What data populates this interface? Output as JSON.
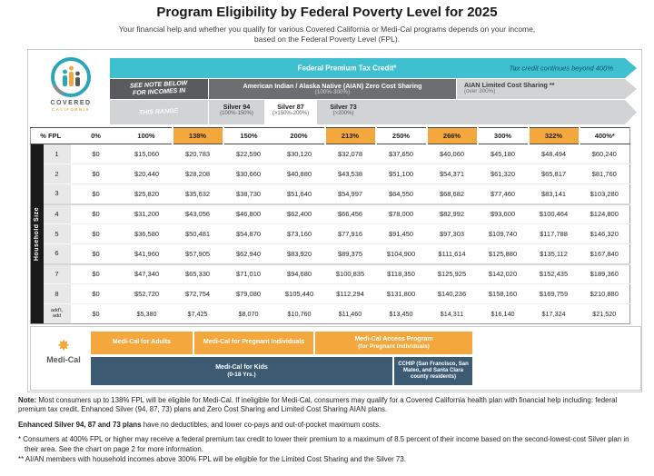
{
  "page": {
    "title": "Program Eligibility by Federal Poverty Level for 2025",
    "subtitle_line1": "Your financial help and whether you qualify for various Covered California or Medi-Cal programs depends on your income,",
    "subtitle_line2": "based on the Federal Poverty Level (FPL)."
  },
  "logo": {
    "brand_top": "COVERED",
    "brand_bottom": "CALIFORNIA"
  },
  "arrows": {
    "tax_credit": {
      "label": "Federal Premium Tax Credit*",
      "right_note": "Tax credit continues beyond 400%",
      "color": "#3fc0d0"
    },
    "see_note": {
      "line1": "SEE NOTE BELOW",
      "line2": "FOR INCOMES IN",
      "line3": "THIS RANGE"
    },
    "aian_zero": {
      "label": "American Indian / Alaska Native (AIAN) Zero Cost Sharing",
      "range": "(100%-300%)",
      "color": "#6d6e71"
    },
    "aian_limited": {
      "label": "AIAN Limited Cost Sharing **",
      "range": "(over 300%)",
      "color": "#d1d3d4"
    },
    "silver_plans": [
      {
        "name": "Silver 94",
        "range": "(100%-150%)"
      },
      {
        "name": "Silver 87",
        "range": "(>150%-200%)"
      },
      {
        "name": "Silver 73",
        "range": "(>200%)"
      }
    ]
  },
  "table": {
    "corner_header": "% FPL",
    "row_axis_label": "Household Size",
    "highlight_color": "#f3a73c",
    "columns": [
      {
        "label": "0%",
        "highlight": false
      },
      {
        "label": "100%",
        "highlight": false
      },
      {
        "label": "138%",
        "highlight": true
      },
      {
        "label": "150%",
        "highlight": false
      },
      {
        "label": "200%",
        "highlight": false
      },
      {
        "label": "213%",
        "highlight": true
      },
      {
        "label": "250%",
        "highlight": false
      },
      {
        "label": "266%",
        "highlight": true
      },
      {
        "label": "300%",
        "highlight": false
      },
      {
        "label": "322%",
        "highlight": true
      },
      {
        "label": "400%*",
        "highlight": false
      }
    ],
    "rows": [
      {
        "size": "1",
        "values": [
          "$0",
          "$15,060",
          "$20,783",
          "$22,590",
          "$30,120",
          "$32,078",
          "$37,650",
          "$40,060",
          "$45,180",
          "$48,494",
          "$60,240"
        ]
      },
      {
        "size": "2",
        "values": [
          "$0",
          "$20,440",
          "$28,208",
          "$30,660",
          "$40,880",
          "$43,538",
          "$51,100",
          "$54,371",
          "$61,320",
          "$65,817",
          "$81,760"
        ]
      },
      {
        "size": "3",
        "values": [
          "$0",
          "$25,820",
          "$35,632",
          "$38,730",
          "$51,640",
          "$54,997",
          "$64,550",
          "$68,682",
          "$77,460",
          "$83,141",
          "$103,280"
        ]
      },
      {
        "size": "4",
        "values": [
          "$0",
          "$31,200",
          "$43,056",
          "$46,800",
          "$62,400",
          "$66,456",
          "$78,000",
          "$82,992",
          "$93,600",
          "$100,464",
          "$124,800"
        ]
      },
      {
        "size": "5",
        "values": [
          "$0",
          "$36,580",
          "$50,481",
          "$54,870",
          "$73,160",
          "$77,916",
          "$91,450",
          "$97,303",
          "$109,740",
          "$117,788",
          "$146,320"
        ]
      },
      {
        "size": "6",
        "values": [
          "$0",
          "$41,960",
          "$57,905",
          "$62,940",
          "$83,920",
          "$89,375",
          "$104,900",
          "$111,614",
          "$125,880",
          "$135,112",
          "$167,840"
        ]
      },
      {
        "size": "7",
        "values": [
          "$0",
          "$47,340",
          "$65,330",
          "$71,010",
          "$94,680",
          "$100,835",
          "$118,350",
          "$125,925",
          "$142,020",
          "$152,435",
          "$189,360"
        ]
      },
      {
        "size": "8",
        "values": [
          "$0",
          "$52,720",
          "$72,754",
          "$79,080",
          "$105,440",
          "$112,294",
          "$131,800",
          "$140,236",
          "$158,160",
          "$169,759",
          "$210,880"
        ]
      },
      {
        "size": "add'l,\nadd",
        "values": [
          "$0",
          "$5,380",
          "$7,425",
          "$8,070",
          "$10,760",
          "$11,460",
          "$13,450",
          "$14,311",
          "$16,140",
          "$17,324",
          "$21,520"
        ]
      }
    ]
  },
  "medical": {
    "label": "Medi-Cal",
    "adults": "Medi-Cal for Adults",
    "pregnant": "Medi-Cal for Pregnant Individuals",
    "access_line1": "Medi-Cal Access Program",
    "access_line2": "(for Pregnant Individuals)",
    "kids_line1": "Medi-Cal for Kids",
    "kids_line2": "(0-18 Yrs.)",
    "cchip": "CCHIP (San Francisco, San Mateo, and Santa Clara county residents)",
    "orange": "#f3a73c",
    "blue": "#3d5a73"
  },
  "notes": {
    "note_label": "Note:",
    "note_text": " Most consumers up to 138% FPL will be eligible for Medi-Cal. If ineligible for Medi-Cal, consumers may qualify for a Covered California health plan with financial help including: federal premium tax credit, Enhanced Silver (94, 87, 73) plans and Zero Cost Sharing and Limited Cost Sharing AIAN plans.",
    "silver_label": "Enhanced Silver 94, 87 and 73 plans",
    "silver_text": " have no deductibles, and lower co-pays and out-of-pocket maximum costs.",
    "star1": "* Consumers at 400% FPL or higher may receive a federal premium tax credit to lower their premium to a maximum of 8.5 percent of their income based on the second-lowest-cost Silver plan in their area. See the chart on page 2 for more information.",
    "star2": "** AI/AN members with household incomes above 300% FPL will be eligible for the Limited Cost Sharing and the Silver 73."
  }
}
